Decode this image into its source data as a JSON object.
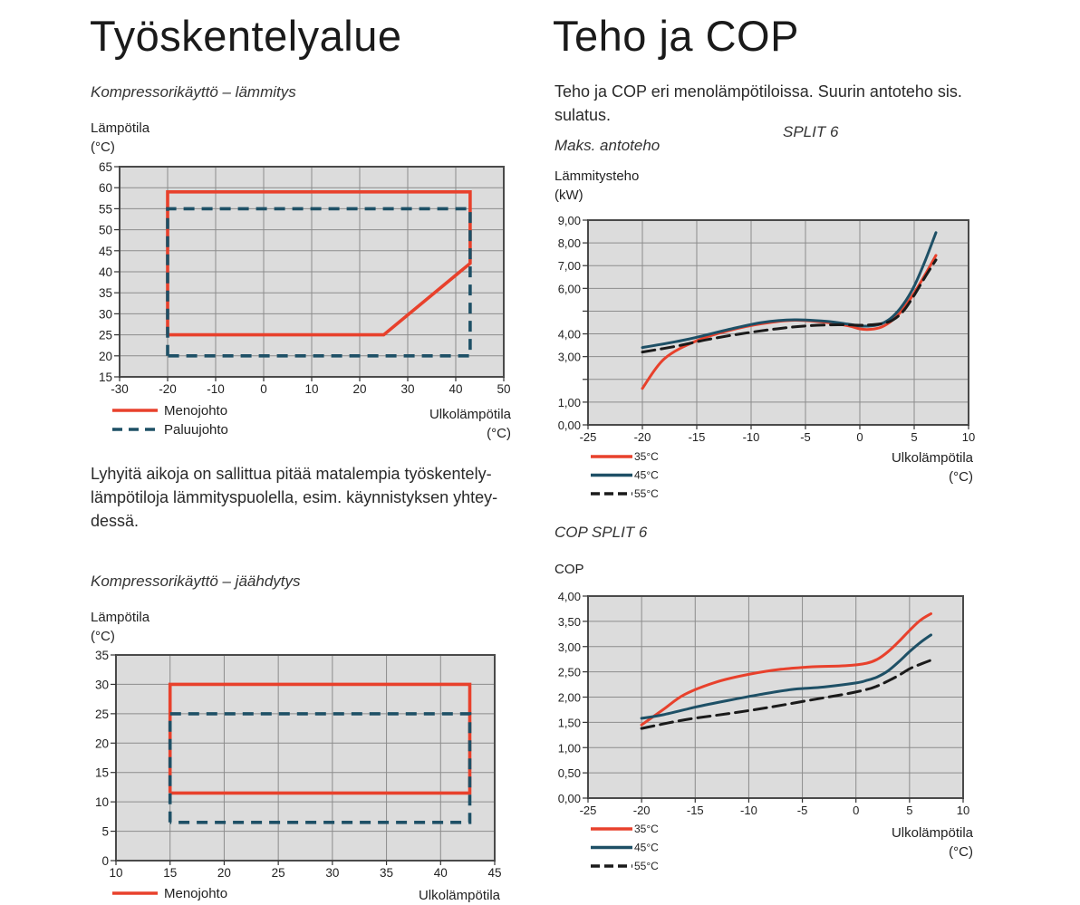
{
  "left": {
    "title": "Työskentelyalue",
    "heating": {
      "subtitle": "Kompressorikäyttö – lämmitys",
      "ylabel_line1": "Lämpötila",
      "ylabel_line2": "(°C)",
      "xlabel_line1": "Ulkolämpötila",
      "xlabel_line2": "(°C)"
    },
    "note": "Lyhyitä aikoja on sallittua pitää matalempia työskentely-lämpötiloja lämmityspuolella, esim. käynnistyksen yhtey-dessä.",
    "note_line1": "Lyhyitä aikoja on sallittua pitää matalempia työskentely-",
    "note_line2": "lämpötiloja lämmityspuolella, esim. käynnistyksen yhtey-",
    "note_line3": "dessä.",
    "cooling": {
      "subtitle": "Kompressorikäyttö – jäähdytys",
      "ylabel_line1": "Lämpötila",
      "ylabel_line2": "(°C)",
      "xlabel_line1": "Ulkolämpötila"
    }
  },
  "right": {
    "title": "Teho ja COP",
    "intro": "Teho ja COP eri menolämpötiloissa. Suurin antoteho sis. sulatus.",
    "intro_line1": "Teho ja COP eri menolämpötiloissa. Suurin antoteho sis.",
    "intro_line2": "sulatus.",
    "split_label": "SPLIT 6",
    "power": {
      "subtitle": "Maks. antoteho",
      "ylabel_line1": "Lämmitysteho",
      "ylabel_line2": "(kW)",
      "xlabel_line1": "Ulkolämpötila",
      "xlabel_line2": "(°C)"
    },
    "cop": {
      "subtitle": "COP SPLIT 6",
      "ylabel_line1": "COP",
      "xlabel_line1": "Ulkolämpötila",
      "xlabel_line2": "(°C)"
    }
  },
  "colors": {
    "red": "#e8412c",
    "teal": "#1e5066",
    "black": "#1a1a1a",
    "plot_bg": "#dcdcdc",
    "grid": "#8c8c8c"
  },
  "chart_data": [
    {
      "id": "heating",
      "type": "line",
      "title": "Kompressorikäyttö – lämmitys",
      "xlabel": "Ulkolämpötila (°C)",
      "ylabel": "Lämpötila (°C)",
      "xlim": [
        -30,
        50
      ],
      "ylim": [
        15,
        65
      ],
      "xticks": [
        -30,
        -20,
        -10,
        0,
        10,
        20,
        30,
        40,
        50
      ],
      "yticks": [
        15,
        20,
        25,
        30,
        35,
        40,
        45,
        50,
        55,
        60,
        65
      ],
      "grid": true,
      "legend_position": "below-left",
      "series": [
        {
          "name": "Menojohto",
          "color": "#e8412c",
          "style": "solid",
          "x": [
            -20,
            -20,
            43,
            43,
            25,
            -20
          ],
          "y": [
            25,
            59,
            59,
            42,
            25,
            25
          ]
        },
        {
          "name": "Paluujohto",
          "color": "#1e5066",
          "style": "dashed",
          "x": [
            -20,
            -20,
            43,
            43,
            -20
          ],
          "y": [
            20,
            55,
            55,
            20,
            20
          ]
        }
      ]
    },
    {
      "id": "cooling",
      "type": "line",
      "title": "Kompressorikäyttö – jäähdytys",
      "xlabel": "Ulkolämpötila",
      "ylabel": "Lämpötila (°C)",
      "xlim": [
        10,
        45
      ],
      "ylim": [
        0,
        35
      ],
      "xticks": [
        10,
        15,
        20,
        25,
        30,
        35,
        40,
        45
      ],
      "yticks": [
        0,
        5,
        10,
        15,
        20,
        25,
        30,
        35
      ],
      "grid": true,
      "legend_position": "below-left",
      "series": [
        {
          "name": "Menojohto",
          "color": "#e8412c",
          "style": "solid",
          "x": [
            15,
            15,
            42.7,
            42.7,
            15
          ],
          "y": [
            11.5,
            30,
            30,
            11.5,
            11.5
          ]
        },
        {
          "name": "Paluujohto",
          "color": "#1e5066",
          "style": "dashed",
          "show_in_legend": false,
          "x": [
            15,
            15,
            42.7,
            42.7,
            15
          ],
          "y": [
            6.5,
            25,
            25,
            6.5,
            6.5
          ]
        }
      ]
    },
    {
      "id": "power",
      "type": "line",
      "title": "Maks. antoteho",
      "xlabel": "Ulkolämpötila (°C)",
      "ylabel": "Lämmitysteho (kW)",
      "xlim": [
        -25,
        10
      ],
      "ylim": [
        0,
        9
      ],
      "xticks": [
        -25,
        -20,
        -15,
        -10,
        -5,
        0,
        5,
        10
      ],
      "yticks": [
        0,
        1,
        2,
        3,
        4,
        5,
        6,
        7,
        8,
        9
      ],
      "ytick_labels": [
        "0,00",
        "1,00",
        "",
        "3,00",
        "4,00",
        "",
        "6,00",
        "7,00",
        "8,00",
        "9,00"
      ],
      "grid": true,
      "legend_position": "below-left",
      "series": [
        {
          "name": "35°C",
          "color": "#e8412c",
          "style": "solid",
          "x": [
            -20,
            -18,
            -15,
            -12,
            -9,
            -6,
            -3,
            -1,
            0,
            1,
            2,
            3,
            4,
            5,
            6,
            7
          ],
          "y": [
            1.6,
            2.9,
            3.7,
            4.15,
            4.45,
            4.6,
            4.5,
            4.35,
            4.22,
            4.2,
            4.3,
            4.6,
            5.1,
            5.8,
            6.6,
            7.45
          ]
        },
        {
          "name": "45°C",
          "color": "#1e5066",
          "style": "solid",
          "x": [
            -20,
            -17,
            -15,
            -12,
            -9,
            -6,
            -3,
            -1,
            0,
            1,
            2,
            3,
            4,
            5,
            6,
            7
          ],
          "y": [
            3.4,
            3.65,
            3.85,
            4.2,
            4.5,
            4.62,
            4.55,
            4.42,
            4.35,
            4.35,
            4.45,
            4.75,
            5.3,
            6.1,
            7.2,
            8.45
          ]
        },
        {
          "name": "55°C",
          "color": "#1a1a1a",
          "style": "dashed",
          "x": [
            -20,
            -17,
            -14,
            -11,
            -8,
            -5,
            -2,
            0,
            1,
            2,
            3,
            4,
            5,
            6,
            7
          ],
          "y": [
            3.2,
            3.45,
            3.75,
            4.0,
            4.2,
            4.35,
            4.4,
            4.38,
            4.4,
            4.45,
            4.6,
            5.0,
            5.7,
            6.5,
            7.25
          ]
        }
      ]
    },
    {
      "id": "cop",
      "type": "line",
      "title": "COP SPLIT 6",
      "xlabel": "Ulkolämpötila (°C)",
      "ylabel": "COP",
      "xlim": [
        -25,
        10
      ],
      "ylim": [
        0,
        4
      ],
      "xticks": [
        -25,
        -20,
        -15,
        -10,
        -5,
        0,
        5,
        10
      ],
      "yticks": [
        0,
        0.5,
        1,
        1.5,
        2,
        2.5,
        3,
        3.5,
        4
      ],
      "ytick_labels": [
        "0,00",
        "0,50",
        "1,00",
        "1,50",
        "2,00",
        "2,50",
        "3,00",
        "3,50",
        "4,00"
      ],
      "grid": true,
      "legend_position": "below-left",
      "series": [
        {
          "name": "35°C",
          "color": "#e8412c",
          "style": "solid",
          "x": [
            -20,
            -18,
            -16,
            -13,
            -10,
            -7,
            -4,
            -1,
            1,
            2,
            3,
            4,
            5,
            6,
            7
          ],
          "y": [
            1.45,
            1.75,
            2.05,
            2.3,
            2.45,
            2.55,
            2.6,
            2.62,
            2.67,
            2.75,
            2.9,
            3.1,
            3.32,
            3.52,
            3.65
          ]
        },
        {
          "name": "45°C",
          "color": "#1e5066",
          "style": "solid",
          "x": [
            -20,
            -18,
            -15,
            -12,
            -9,
            -6,
            -3,
            0,
            1,
            2,
            3,
            4,
            5,
            6,
            7
          ],
          "y": [
            1.58,
            1.65,
            1.8,
            1.93,
            2.05,
            2.15,
            2.2,
            2.28,
            2.33,
            2.4,
            2.52,
            2.7,
            2.9,
            3.08,
            3.23
          ]
        },
        {
          "name": "55°C",
          "color": "#1a1a1a",
          "style": "dashed",
          "x": [
            -20,
            -16,
            -12,
            -8,
            -4,
            -1,
            1,
            2,
            3,
            4,
            5,
            6,
            7
          ],
          "y": [
            1.38,
            1.55,
            1.67,
            1.8,
            1.95,
            2.06,
            2.15,
            2.22,
            2.32,
            2.43,
            2.56,
            2.65,
            2.73
          ]
        }
      ]
    }
  ]
}
